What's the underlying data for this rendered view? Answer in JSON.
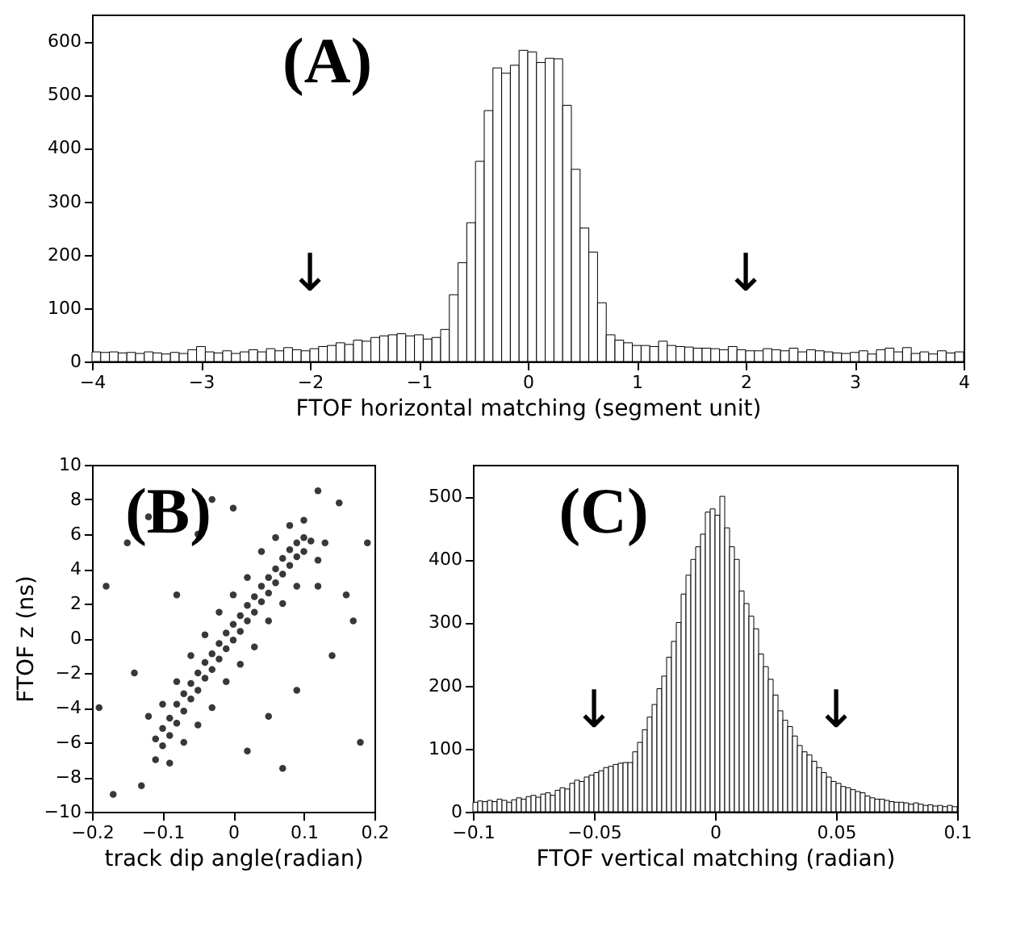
{
  "chart_data": [
    {
      "type": "histogram",
      "xlabel": "FTOF horizontal matching (segment unit)",
      "color": "#000000",
      "bins": [
        -4.0,
        -3.92,
        -3.84,
        -3.76,
        -3.68,
        -3.6,
        -3.52,
        -3.44,
        -3.36,
        -3.28,
        -3.2,
        -3.12,
        -3.04,
        -2.96,
        -2.88,
        -2.8,
        -2.72,
        -2.64,
        -2.56,
        -2.48,
        -2.4,
        -2.32,
        -2.24,
        -2.16,
        -2.08,
        -2.0,
        -1.92,
        -1.84,
        -1.76,
        -1.68,
        -1.6,
        -1.52,
        -1.44,
        -1.36,
        -1.28,
        -1.2,
        -1.12,
        -1.04,
        -0.96,
        -0.88,
        -0.8,
        -0.72,
        -0.64,
        -0.56,
        -0.48,
        -0.4,
        -0.32,
        -0.24,
        -0.16,
        -0.08,
        0.0,
        0.08,
        0.16,
        0.24,
        0.32,
        0.4,
        0.48,
        0.56,
        0.64,
        0.72,
        0.8,
        0.88,
        0.96,
        1.04,
        1.12,
        1.2,
        1.28,
        1.36,
        1.44,
        1.52,
        1.6,
        1.68,
        1.76,
        1.84,
        1.92,
        2.0,
        2.08,
        2.16,
        2.24,
        2.32,
        2.4,
        2.48,
        2.56,
        2.64,
        2.72,
        2.8,
        2.88,
        2.96,
        3.04,
        3.12,
        3.2,
        3.28,
        3.36,
        3.44,
        3.52,
        3.6,
        3.68,
        3.76,
        3.84,
        3.92,
        4.0
      ],
      "values": [
        18,
        17,
        18,
        16,
        17,
        15,
        18,
        16,
        14,
        17,
        15,
        22,
        28,
        18,
        16,
        20,
        15,
        18,
        22,
        18,
        24,
        20,
        26,
        22,
        20,
        24,
        28,
        30,
        35,
        32,
        40,
        38,
        45,
        48,
        50,
        52,
        48,
        50,
        42,
        45,
        60,
        125,
        185,
        260,
        375,
        470,
        550,
        540,
        555,
        583,
        580,
        560,
        568,
        567,
        480,
        360,
        250,
        205,
        110,
        50,
        40,
        35,
        30,
        30,
        28,
        38,
        30,
        28,
        27,
        25,
        25,
        24,
        22,
        28,
        22,
        20,
        20,
        24,
        22,
        20,
        25,
        18,
        22,
        20,
        18,
        16,
        15,
        17,
        20,
        14,
        22,
        25,
        18,
        26,
        15,
        18,
        14,
        20,
        16,
        18
      ],
      "xlim": [
        -4,
        4
      ],
      "xticks": [
        -4,
        -3,
        -2,
        -1,
        0,
        1,
        2,
        3,
        4
      ],
      "ylim": [
        0,
        650
      ],
      "yticks": [
        0,
        100,
        200,
        300,
        400,
        500,
        600
      ],
      "annotations": [
        "(A)",
        "↓",
        "↓"
      ]
    },
    {
      "type": "scatter",
      "xlabel": "track dip angle(radian)",
      "ylabel": "FTOF z (ns)",
      "color": "#222222",
      "x": [
        -0.11,
        -0.1,
        -0.1,
        -0.09,
        -0.09,
        -0.08,
        -0.08,
        -0.07,
        -0.07,
        -0.06,
        -0.06,
        -0.05,
        -0.05,
        -0.04,
        -0.04,
        -0.03,
        -0.03,
        -0.02,
        -0.02,
        -0.01,
        -0.01,
        0.0,
        0.0,
        0.01,
        0.01,
        0.02,
        0.02,
        0.03,
        0.03,
        0.04,
        0.04,
        0.05,
        0.05,
        0.06,
        0.06,
        0.07,
        0.07,
        0.08,
        0.08,
        0.09,
        0.09,
        0.1,
        0.1,
        0.11,
        -0.12,
        -0.11,
        -0.1,
        -0.09,
        -0.08,
        -0.07,
        -0.06,
        -0.05,
        -0.04,
        -0.03,
        -0.02,
        -0.01,
        0.0,
        0.01,
        0.02,
        0.03,
        0.04,
        0.05,
        0.06,
        0.07,
        0.08,
        0.09,
        0.1,
        0.12,
        0.13,
        0.12,
        -0.18,
        -0.17,
        -0.15,
        -0.14,
        -0.13,
        -0.12,
        -0.08,
        -0.05,
        -0.03,
        0.0,
        0.02,
        0.05,
        0.07,
        0.09,
        0.12,
        0.14,
        0.15,
        0.17,
        0.18,
        0.19,
        -0.19,
        0.16
      ],
      "values": [
        -5.8,
        -5.2,
        -6.2,
        -4.6,
        -5.6,
        -3.8,
        -4.9,
        -3.2,
        -4.2,
        -2.6,
        -3.5,
        -2.0,
        -3.0,
        -1.4,
        -2.3,
        -0.9,
        -1.8,
        -0.3,
        -1.2,
        0.3,
        -0.6,
        0.8,
        -0.1,
        1.3,
        0.4,
        1.9,
        1.0,
        2.4,
        1.5,
        3.0,
        2.1,
        3.5,
        2.6,
        4.0,
        3.2,
        4.6,
        3.7,
        5.1,
        4.2,
        5.5,
        4.7,
        5.8,
        5.0,
        5.6,
        -4.5,
        -7.0,
        -3.8,
        -7.2,
        -2.5,
        -6.0,
        -1.0,
        -5.0,
        0.2,
        -4.0,
        1.5,
        -2.5,
        2.5,
        -1.5,
        3.5,
        -0.5,
        5.0,
        1.0,
        5.8,
        2.0,
        6.5,
        3.0,
        6.8,
        4.5,
        5.5,
        3.0,
        3.0,
        -9.0,
        5.5,
        -2.0,
        -8.5,
        7.0,
        2.5,
        6.0,
        8.0,
        7.5,
        -6.5,
        -4.5,
        -7.5,
        -3.0,
        8.5,
        -1.0,
        7.8,
        1.0,
        -6.0,
        5.5,
        -4.0,
        2.5
      ],
      "xlim": [
        -0.2,
        0.2
      ],
      "xticks": [
        -0.2,
        -0.1,
        0,
        0.1,
        0.2
      ],
      "ylim": [
        -10,
        10
      ],
      "yticks": [
        -10,
        -8,
        -6,
        -4,
        -2,
        0,
        2,
        4,
        6,
        8,
        10
      ],
      "annotations": [
        "(B)"
      ]
    },
    {
      "type": "histogram",
      "xlabel": "FTOF vertical matching (radian)",
      "color": "#000000",
      "bins": [
        -0.1,
        -0.098,
        -0.096,
        -0.094,
        -0.092,
        -0.09,
        -0.088,
        -0.086,
        -0.084,
        -0.082,
        -0.08,
        -0.078,
        -0.076,
        -0.074,
        -0.072,
        -0.07,
        -0.068,
        -0.066,
        -0.064,
        -0.062,
        -0.06,
        -0.058,
        -0.056,
        -0.054,
        -0.052,
        -0.05,
        -0.048,
        -0.046,
        -0.044,
        -0.042,
        -0.04,
        -0.038,
        -0.036,
        -0.034,
        -0.032,
        -0.03,
        -0.028,
        -0.026,
        -0.024,
        -0.022,
        -0.02,
        -0.018,
        -0.016,
        -0.014,
        -0.012,
        -0.01,
        -0.008,
        -0.006,
        -0.004,
        -0.002,
        0.0,
        0.002,
        0.004,
        0.006,
        0.008,
        0.01,
        0.012,
        0.014,
        0.016,
        0.018,
        0.02,
        0.022,
        0.024,
        0.026,
        0.028,
        0.03,
        0.032,
        0.034,
        0.036,
        0.038,
        0.04,
        0.042,
        0.044,
        0.046,
        0.048,
        0.05,
        0.052,
        0.054,
        0.056,
        0.058,
        0.06,
        0.062,
        0.064,
        0.066,
        0.068,
        0.07,
        0.072,
        0.074,
        0.076,
        0.078,
        0.08,
        0.082,
        0.084,
        0.086,
        0.088,
        0.09,
        0.092,
        0.094,
        0.096,
        0.098,
        0.1
      ],
      "values": [
        15,
        17,
        16,
        18,
        16,
        20,
        18,
        15,
        19,
        22,
        20,
        24,
        26,
        23,
        28,
        30,
        26,
        34,
        38,
        36,
        45,
        50,
        48,
        55,
        58,
        62,
        65,
        70,
        72,
        75,
        77,
        78,
        78,
        95,
        110,
        130,
        150,
        170,
        195,
        215,
        245,
        270,
        300,
        345,
        375,
        400,
        420,
        440,
        475,
        480,
        470,
        500,
        450,
        420,
        400,
        350,
        330,
        310,
        290,
        250,
        230,
        210,
        185,
        160,
        145,
        135,
        120,
        105,
        95,
        90,
        80,
        70,
        62,
        55,
        48,
        45,
        40,
        38,
        35,
        32,
        30,
        25,
        22,
        20,
        20,
        18,
        16,
        15,
        15,
        14,
        12,
        14,
        12,
        10,
        11,
        9,
        10,
        8,
        10,
        8
      ],
      "xlim": [
        -0.1,
        0.1
      ],
      "xticks": [
        -0.1,
        -0.05,
        0,
        0.05,
        0.1
      ],
      "ylim": [
        0,
        550
      ],
      "yticks": [
        0,
        100,
        200,
        300,
        400,
        500
      ],
      "annotations": [
        "(C)",
        "↓",
        "↓"
      ]
    }
  ]
}
